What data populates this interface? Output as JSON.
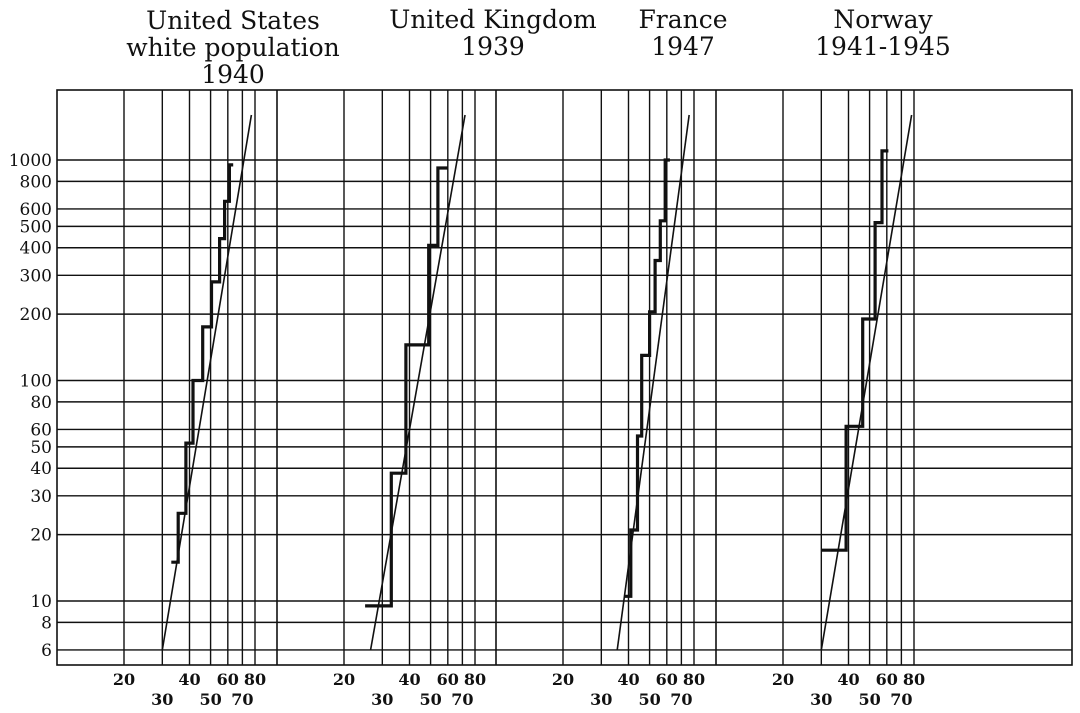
{
  "chart_data": {
    "type": "line",
    "y_scale": "log",
    "x_scale": "log",
    "y_ticks": [
      {
        "value": 1000,
        "label": "1000"
      },
      {
        "value": 800,
        "label": "800"
      },
      {
        "value": 600,
        "label": "600"
      },
      {
        "value": 500,
        "label": "500"
      },
      {
        "value": 400,
        "label": "400"
      },
      {
        "value": 300,
        "label": "300"
      },
      {
        "value": 200,
        "label": "200"
      },
      {
        "value": 100,
        "label": "100"
      },
      {
        "value": 80,
        "label": "80"
      },
      {
        "value": 60,
        "label": "60"
      },
      {
        "value": 50,
        "label": "50"
      },
      {
        "value": 40,
        "label": "40"
      },
      {
        "value": 30,
        "label": "30"
      },
      {
        "value": 20,
        "label": "20"
      },
      {
        "value": 10,
        "label": "10"
      },
      {
        "value": 8,
        "label": "8"
      },
      {
        "value": 6,
        "label": "6"
      }
    ],
    "x_ticks": [
      {
        "value": 20,
        "label": "20",
        "row": 1
      },
      {
        "value": 30,
        "label": "30",
        "row": 2
      },
      {
        "value": 40,
        "label": "40",
        "row": 1
      },
      {
        "value": 50,
        "label": "50",
        "row": 2
      },
      {
        "value": 60,
        "label": "60",
        "row": 1
      },
      {
        "value": 70,
        "label": "70",
        "row": 2
      },
      {
        "value": 80,
        "label": "80",
        "row": 1
      }
    ],
    "panels": [
      {
        "title_lines": [
          "United States",
          "white population",
          "1940"
        ],
        "step": [
          [
            33,
            15
          ],
          [
            35.5,
            15
          ],
          [
            35.5,
            25
          ],
          [
            38.5,
            25
          ],
          [
            38.5,
            52
          ],
          [
            41.5,
            52
          ],
          [
            41.5,
            100
          ],
          [
            46,
            100
          ],
          [
            46,
            175
          ],
          [
            50.5,
            175
          ],
          [
            50.5,
            280
          ],
          [
            55,
            280
          ],
          [
            55,
            440
          ],
          [
            58,
            440
          ],
          [
            58,
            650
          ],
          [
            61,
            650
          ],
          [
            61,
            950
          ],
          [
            63.5,
            950
          ]
        ],
        "fit": [
          [
            30,
            6
          ],
          [
            77,
            1600
          ]
        ]
      },
      {
        "title_lines": [
          "United Kingdom",
          "1939"
        ],
        "step": [
          [
            25,
            9.5
          ],
          [
            33,
            9.5
          ],
          [
            33,
            38
          ],
          [
            38.5,
            38
          ],
          [
            38.5,
            145
          ],
          [
            49,
            145
          ],
          [
            49,
            410
          ],
          [
            54,
            410
          ],
          [
            54,
            920
          ],
          [
            60,
            920
          ]
        ],
        "fit": [
          [
            26.5,
            6
          ],
          [
            72,
            1600
          ]
        ]
      },
      {
        "title_lines": [
          "France",
          "1947"
        ],
        "step": [
          [
            38.5,
            10.5
          ],
          [
            41,
            10.5
          ],
          [
            41,
            21
          ],
          [
            44,
            21
          ],
          [
            44,
            56
          ],
          [
            46,
            56
          ],
          [
            46,
            130
          ],
          [
            50,
            130
          ],
          [
            50,
            205
          ],
          [
            53,
            205
          ],
          [
            53,
            350
          ],
          [
            56,
            350
          ],
          [
            56,
            530
          ],
          [
            59,
            530
          ],
          [
            59,
            1000
          ],
          [
            62,
            1000
          ]
        ],
        "fit": [
          [
            35.5,
            6
          ],
          [
            76,
            1600
          ]
        ]
      },
      {
        "title_lines": [
          "Norway",
          "1941-1945"
        ],
        "step": [
          [
            30,
            17
          ],
          [
            39,
            17
          ],
          [
            39,
            62
          ],
          [
            46.5,
            62
          ],
          [
            46.5,
            190
          ],
          [
            53,
            190
          ],
          [
            53,
            520
          ],
          [
            57,
            520
          ],
          [
            57,
            1100
          ],
          [
            61,
            1100
          ]
        ],
        "fit": [
          [
            30,
            6
          ],
          [
            78,
            1600
          ]
        ]
      }
    ]
  }
}
